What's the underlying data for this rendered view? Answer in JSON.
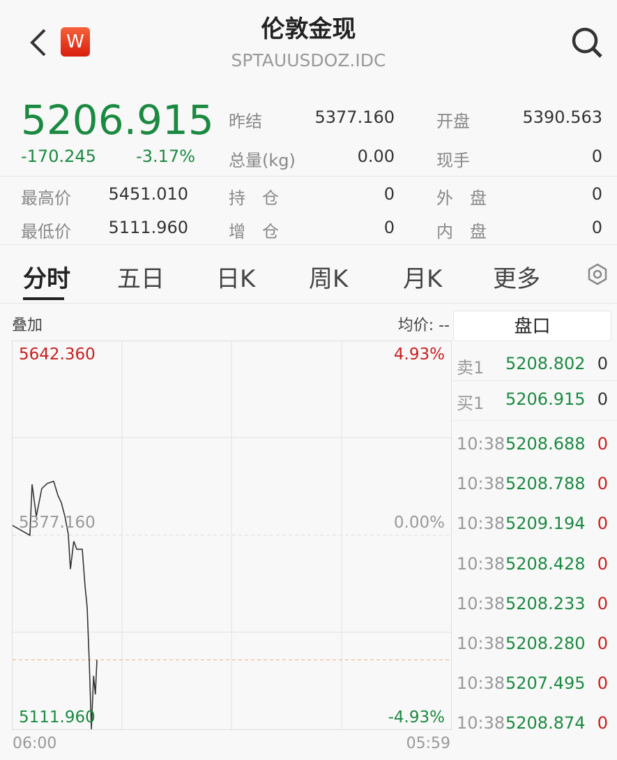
{
  "header": {
    "title": "伦敦金现",
    "code": "SPTAUUSDOZ.IDC",
    "logo": "W",
    "icons": [
      "back-icon",
      "search-icon"
    ]
  },
  "quote": {
    "price": "5206.915",
    "change": "-170.245",
    "change_pct": "-3.17%",
    "fields": [
      {
        "label": "昨结",
        "value": "5377.160"
      },
      {
        "label": "开盘",
        "value": "5390.563"
      },
      {
        "label": "总量(kg)",
        "value": "0.00"
      },
      {
        "label": "现手",
        "value": "0"
      },
      {
        "label": "最高价",
        "value": "5451.010"
      },
      {
        "label": "持　仓",
        "value": "0"
      },
      {
        "label": "外　盘",
        "value": "0"
      },
      {
        "label": "最低价",
        "value": "5111.960"
      },
      {
        "label": "增　仓",
        "value": "0"
      },
      {
        "label": "内　盘",
        "value": "0"
      }
    ]
  },
  "tabs": [
    "分时",
    "五日",
    "日K",
    "周K",
    "月K",
    "更多"
  ],
  "active_tab": "分时",
  "chart_bar": {
    "overlay": "叠加",
    "avg_price": "均价: --",
    "panel_title": "盘口"
  },
  "chart_data": {
    "type": "line",
    "y_top": "5642.360",
    "y_mid": "5377.160",
    "y_bottom": "5111.960",
    "pct_top": "4.93%",
    "pct_mid": "0.00%",
    "pct_bottom": "-4.93%",
    "x_start": "06:00",
    "x_end": "05:59",
    "ylim": [
      5111.96,
      5642.36
    ],
    "prev_settle": 5377.16,
    "last": 5206.915,
    "x": [
      "06:00",
      "06:57",
      "07:04",
      "07:18",
      "07:36",
      "07:54",
      "08:15",
      "08:29",
      "08:40",
      "08:52",
      "09:03",
      "09:10",
      "09:21",
      "09:31",
      "09:49",
      "09:58",
      "10:05",
      "10:12",
      "10:19",
      "10:26",
      "10:32",
      "10:37"
    ],
    "y": [
      5390.6,
      5377.2,
      5446.8,
      5402.9,
      5441.0,
      5448.0,
      5451.0,
      5431.5,
      5422.0,
      5403.0,
      5379.0,
      5331.0,
      5369.0,
      5358.0,
      5358.0,
      5307.5,
      5279.0,
      5202.0,
      5112.0,
      5185.0,
      5159.6,
      5206.9
    ],
    "grid": true
  },
  "order_book": [
    {
      "side": "卖1",
      "price": "5208.802",
      "vol": "0"
    },
    {
      "side": "买1",
      "price": "5206.915",
      "vol": "0"
    }
  ],
  "ticks": [
    {
      "time": "10:38",
      "price": "5208.688",
      "vol": "0"
    },
    {
      "time": "10:38",
      "price": "5208.788",
      "vol": "0"
    },
    {
      "time": "10:38",
      "price": "5209.194",
      "vol": "0"
    },
    {
      "time": "10:38",
      "price": "5208.428",
      "vol": "0"
    },
    {
      "time": "10:38",
      "price": "5208.233",
      "vol": "0"
    },
    {
      "time": "10:38",
      "price": "5208.280",
      "vol": "0"
    },
    {
      "time": "10:38",
      "price": "5207.495",
      "vol": "0"
    },
    {
      "time": "10:38",
      "price": "5208.874",
      "vol": "0"
    }
  ],
  "colors": {
    "up": "#c8201f",
    "down": "#1b8a41",
    "logo": "#e8321e"
  }
}
